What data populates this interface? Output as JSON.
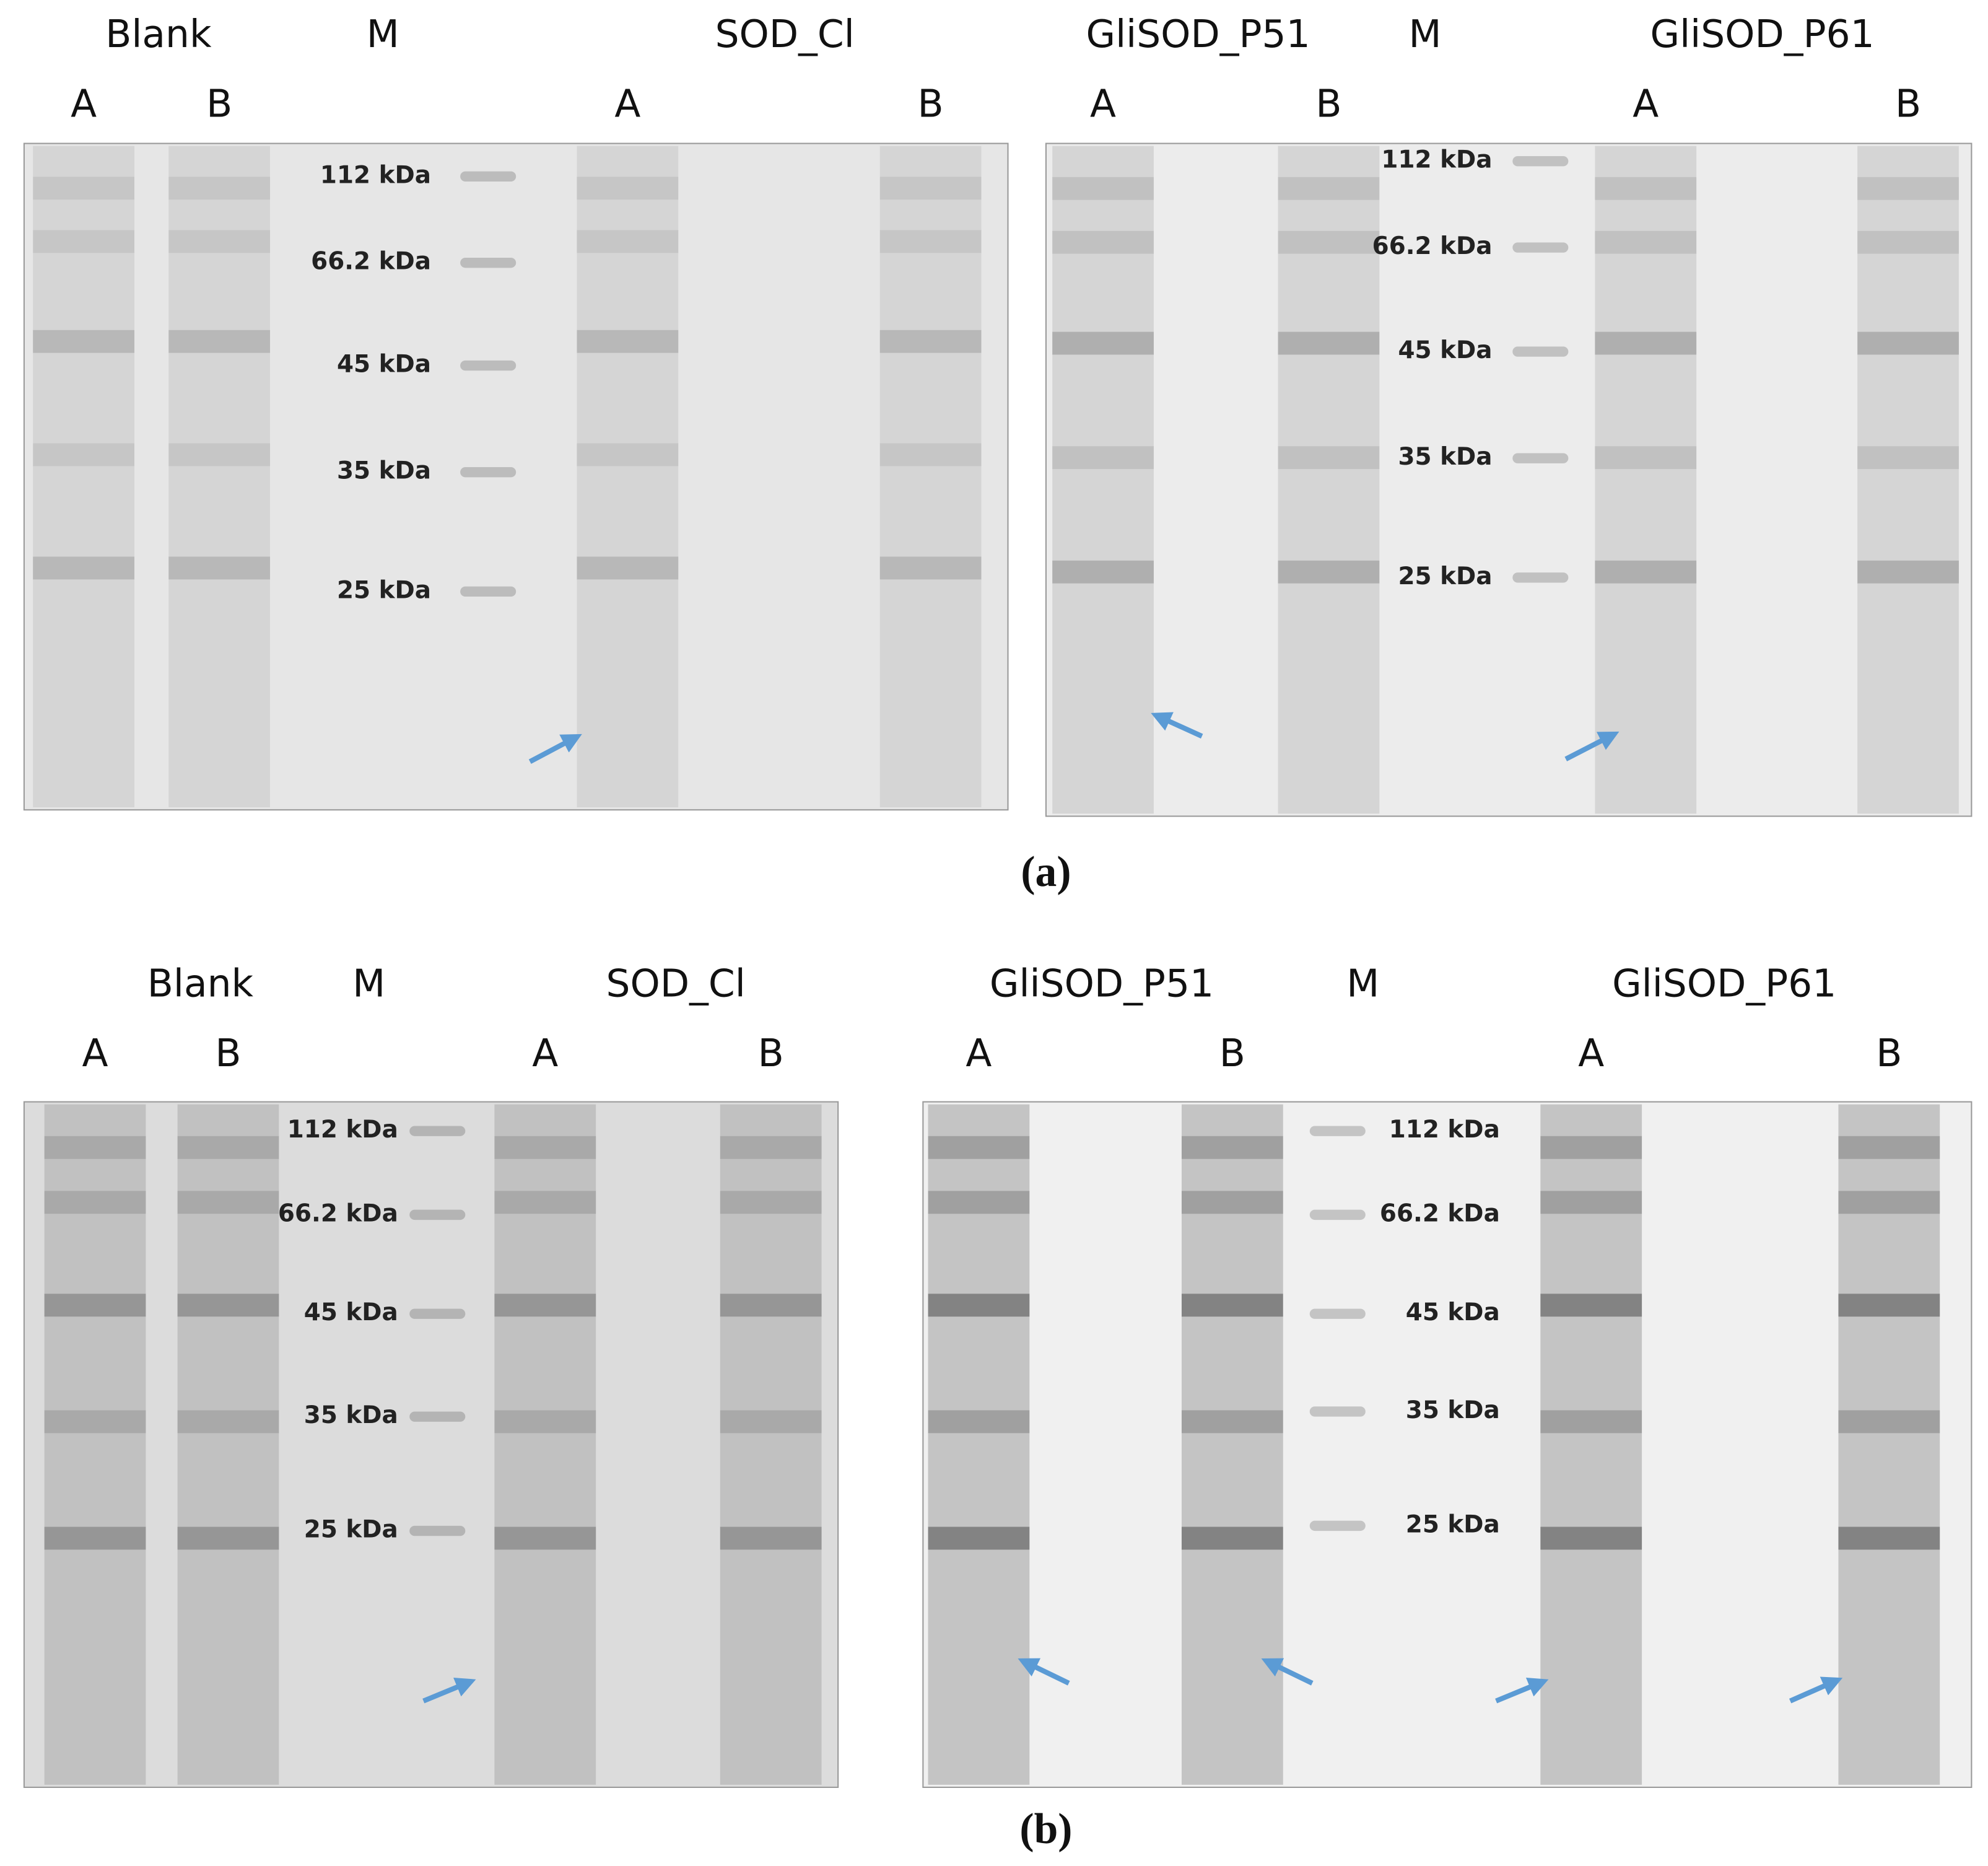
{
  "panels": [
    {
      "caption": "(a)",
      "blots": [
        {
          "groups": [
            "Blank",
            "M",
            "SOD_Cl"
          ],
          "lanes": [
            "A",
            "B",
            "A",
            "B"
          ],
          "markers": [
            "112 kDa",
            "66.2 kDa",
            "45 kDa",
            "35 kDa",
            "25 kDa"
          ]
        },
        {
          "groups": [
            "GliSOD_P51",
            "M",
            "GliSOD_P61"
          ],
          "lanes": [
            "A",
            "B",
            "A",
            "B"
          ],
          "markers": [
            "112 kDa",
            "66.2 kDa",
            "45 kDa",
            "35 kDa",
            "25 kDa"
          ]
        }
      ]
    },
    {
      "caption": "(b)",
      "blots": [
        {
          "groups": [
            "Blank",
            "M",
            "SOD_Cl"
          ],
          "lanes": [
            "A",
            "B",
            "A",
            "B"
          ],
          "markers": [
            "112 kDa",
            "66.2 kDa",
            "45 kDa",
            "35 kDa",
            "25 kDa"
          ]
        },
        {
          "groups": [
            "GliSOD_P51",
            "M",
            "GliSOD_P61"
          ],
          "lanes": [
            "A",
            "B",
            "A",
            "B"
          ],
          "markers": [
            "112 kDa",
            "66.2 kDa",
            "45 kDa",
            "35 kDa",
            "25 kDa"
          ]
        }
      ]
    }
  ]
}
